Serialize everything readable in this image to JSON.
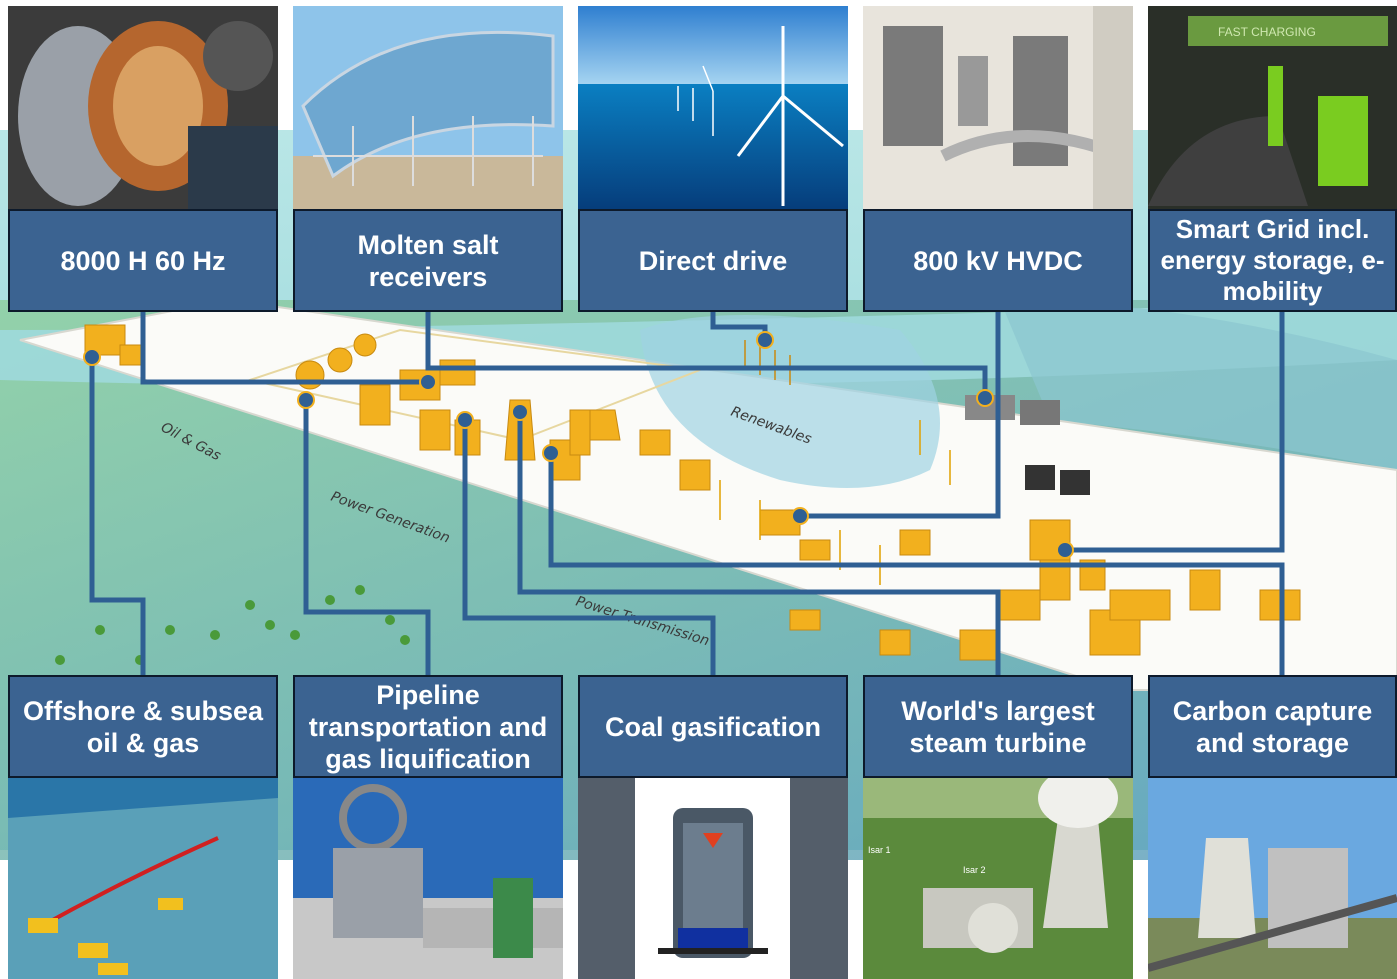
{
  "colors": {
    "label_fill": "#3b6391",
    "label_border": "#0d1a2b",
    "connector": "#2f5f93",
    "plant": "#f2b01e",
    "sea": "#9fd9dc",
    "land": "#5f9fbf"
  },
  "top_labels": [
    {
      "id": "gas-turbine",
      "text": "8000 H 60 Hz",
      "photo": "gas-turbine-photo"
    },
    {
      "id": "molten-salt",
      "text": "Molten salt receivers",
      "photo": "solar-trough-photo"
    },
    {
      "id": "direct-drive",
      "text": "Direct drive",
      "photo": "offshore-wind-photo"
    },
    {
      "id": "hvdc",
      "text": "800 kV HVDC",
      "photo": "hvdc-valve-hall-photo"
    },
    {
      "id": "smart-grid",
      "text": "Smart Grid incl. energy storage, e-mobility",
      "photo": "ev-charging-photo"
    }
  ],
  "bottom_labels": [
    {
      "id": "offshore",
      "text": "Offshore & subsea oil & gas",
      "photo": "subsea-pipeline-photo"
    },
    {
      "id": "pipeline",
      "text": "Pipeline transportation and gas liquification",
      "photo": "pipeline-valve-photo"
    },
    {
      "id": "coal-gas",
      "text": "Coal gasification",
      "photo": "gasifier-reactor-photo"
    },
    {
      "id": "steam-turbine",
      "text": "World's largest steam turbine",
      "photo": "nuclear-plant-photo"
    },
    {
      "id": "ccs",
      "text": "Carbon capture and storage",
      "photo": "power-plant-photo"
    }
  ],
  "map_labels": {
    "oil_gas": "Oil & Gas",
    "power_generation": "Power Generation",
    "renewables": "Renewables",
    "power_transmission": "Power Transmission"
  },
  "photo_texts": {
    "ev_sign": "FAST CHARGING",
    "isar1": "Isar 1",
    "isar2": "Isar 2"
  }
}
